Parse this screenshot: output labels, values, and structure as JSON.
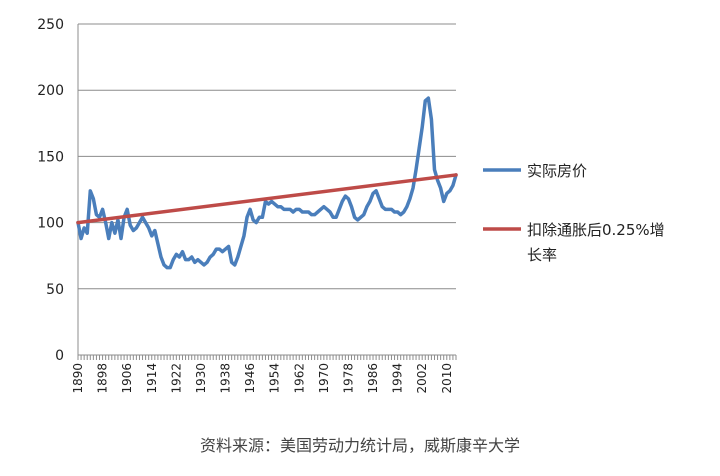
{
  "chart_data": {
    "type": "line",
    "ylim": [
      0,
      250
    ],
    "yticks": [
      0,
      50,
      100,
      150,
      200,
      250
    ],
    "xlim": [
      1890,
      2013
    ],
    "xticks": [
      1890,
      1898,
      1906,
      1914,
      1922,
      1930,
      1938,
      1946,
      1954,
      1962,
      1970,
      1978,
      1986,
      1994,
      2002,
      2010
    ],
    "grid": "horizontal",
    "legend_position": "right",
    "series": [
      {
        "name": "实际房价",
        "color": "#4a7ebb",
        "x": [
          1890,
          1891,
          1892,
          1893,
          1894,
          1895,
          1896,
          1897,
          1898,
          1899,
          1900,
          1901,
          1902,
          1903,
          1904,
          1905,
          1906,
          1907,
          1908,
          1909,
          1910,
          1911,
          1912,
          1913,
          1914,
          1915,
          1916,
          1917,
          1918,
          1919,
          1920,
          1921,
          1922,
          1923,
          1924,
          1925,
          1926,
          1927,
          1928,
          1929,
          1930,
          1931,
          1932,
          1933,
          1934,
          1935,
          1936,
          1937,
          1938,
          1939,
          1940,
          1941,
          1942,
          1943,
          1944,
          1945,
          1946,
          1947,
          1948,
          1949,
          1950,
          1951,
          1952,
          1953,
          1954,
          1955,
          1956,
          1957,
          1958,
          1959,
          1960,
          1961,
          1962,
          1963,
          1964,
          1965,
          1966,
          1967,
          1968,
          1969,
          1970,
          1971,
          1972,
          1973,
          1974,
          1975,
          1976,
          1977,
          1978,
          1979,
          1980,
          1981,
          1982,
          1983,
          1984,
          1985,
          1986,
          1987,
          1988,
          1989,
          1990,
          1991,
          1992,
          1993,
          1994,
          1995,
          1996,
          1997,
          1998,
          1999,
          2000,
          2001,
          2002,
          2003,
          2004,
          2005,
          2006,
          2007,
          2008,
          2009,
          2010,
          2011,
          2012,
          2013
        ],
        "values": [
          100,
          88,
          96,
          92,
          124,
          118,
          106,
          104,
          110,
          100,
          88,
          100,
          92,
          102,
          88,
          104,
          110,
          98,
          94,
          96,
          100,
          104,
          100,
          96,
          90,
          94,
          84,
          74,
          68,
          66,
          66,
          72,
          76,
          74,
          78,
          72,
          72,
          74,
          70,
          72,
          70,
          68,
          70,
          74,
          76,
          80,
          80,
          78,
          80,
          82,
          70,
          68,
          74,
          82,
          90,
          104,
          110,
          102,
          100,
          104,
          104,
          116,
          114,
          116,
          114,
          112,
          112,
          110,
          110,
          110,
          108,
          110,
          110,
          108,
          108,
          108,
          106,
          106,
          108,
          110,
          112,
          110,
          108,
          104,
          104,
          110,
          116,
          120,
          118,
          112,
          104,
          102,
          104,
          106,
          112,
          116,
          122,
          124,
          118,
          112,
          110,
          110,
          110,
          108,
          108,
          106,
          108,
          112,
          118,
          126,
          140,
          156,
          172,
          192,
          194,
          178,
          140,
          132,
          126,
          116,
          122,
          124,
          128,
          136
        ]
      },
      {
        "name": "扣除通胀后0.25%增长率",
        "color": "#be4b48",
        "x": [
          1890,
          2013
        ],
        "values": [
          100,
          136
        ]
      }
    ]
  },
  "source": "资料来源：美国劳动力统计局，威斯康辛大学"
}
